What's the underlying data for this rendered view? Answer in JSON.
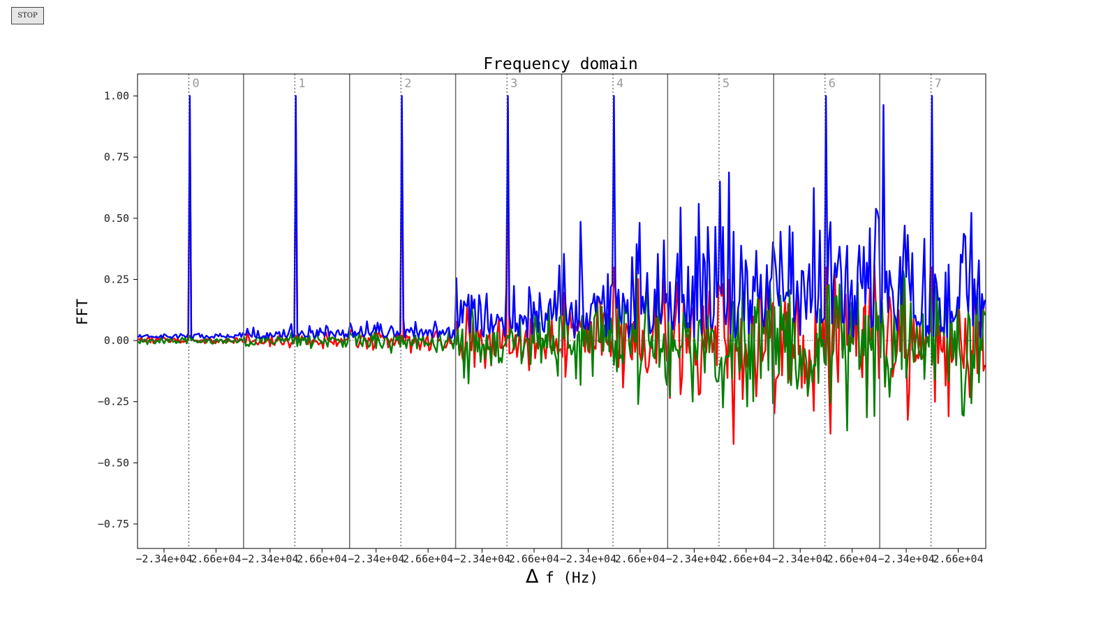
{
  "controls": {
    "stop_label": "STOP"
  },
  "chart_data": {
    "type": "line",
    "title": "Frequency domain",
    "xlabel_symbol": "Δ",
    "xlabel_rest": "f (Hz)",
    "ylabel": "FFT",
    "ylim": [
      -0.85,
      1.09
    ],
    "yticks": [
      1.0,
      0.75,
      0.5,
      0.25,
      0.0,
      -0.25,
      -0.5,
      -0.75
    ],
    "ytick_labels": [
      "1.00",
      "0.75",
      "0.50",
      "0.25",
      "0.00",
      "−0.25",
      "−0.50",
      "−0.75"
    ],
    "xtick_labels": [
      "−2.34e+04",
      "2.66e+04"
    ],
    "segments": 8,
    "segment_labels": [
      "0",
      "1",
      "2",
      "3",
      "4",
      "5",
      "6",
      "7"
    ],
    "grid": false,
    "colors": {
      "blue": "#0000ff",
      "red": "#ff0000",
      "green": "#007f00"
    },
    "series": [
      {
        "color": "#0000ff",
        "role": "magnitude"
      },
      {
        "color": "#ff0000",
        "role": "real"
      },
      {
        "color": "#007f00",
        "role": "imaginary"
      }
    ],
    "segment_peaks": [
      1.0,
      1.0,
      1.0,
      1.0,
      1.0,
      0.72,
      1.0,
      1.0
    ],
    "noise_level": [
      0.03,
      0.06,
      0.12,
      0.35,
      0.55,
      0.8,
      0.8,
      0.75
    ]
  }
}
